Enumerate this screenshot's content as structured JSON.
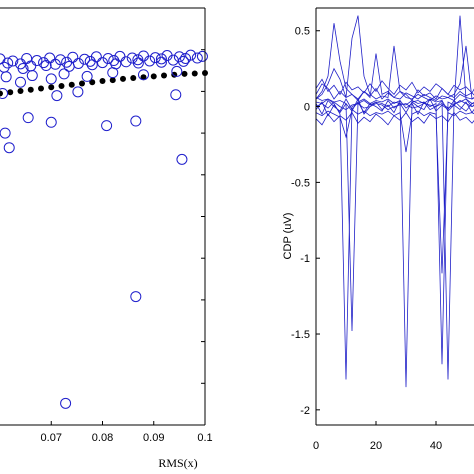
{
  "chart_data": [
    {
      "type": "scatter",
      "xlabel": "RMS(x)",
      "xlim": [
        0.06,
        0.1
      ],
      "xticks": [
        0.07,
        0.08,
        0.09,
        0.1
      ],
      "xtick_labels": [
        "0.07",
        "0.08",
        "0.09",
        "0.1"
      ],
      "ylim": [
        0,
        1
      ],
      "grid": false,
      "series": [
        {
          "marker": "open-circle",
          "color": "#1f1fcc",
          "points": [
            [
              0.06,
              0.878
            ],
            [
              0.0615,
              0.868
            ],
            [
              0.0625,
              0.873
            ],
            [
              0.064,
              0.866
            ],
            [
              0.0652,
              0.879
            ],
            [
              0.066,
              0.861
            ],
            [
              0.0672,
              0.874
            ],
            [
              0.0685,
              0.869
            ],
            [
              0.0697,
              0.88
            ],
            [
              0.0708,
              0.865
            ],
            [
              0.0718,
              0.876
            ],
            [
              0.073,
              0.87
            ],
            [
              0.0742,
              0.882
            ],
            [
              0.0753,
              0.867
            ],
            [
              0.0765,
              0.877
            ],
            [
              0.0776,
              0.872
            ],
            [
              0.0788,
              0.883
            ],
            [
              0.08,
              0.869
            ],
            [
              0.0811,
              0.879
            ],
            [
              0.0822,
              0.874
            ],
            [
              0.0834,
              0.884
            ],
            [
              0.0846,
              0.871
            ],
            [
              0.0858,
              0.88
            ],
            [
              0.0869,
              0.876
            ],
            [
              0.088,
              0.885
            ],
            [
              0.0892,
              0.873
            ],
            [
              0.0903,
              0.881
            ],
            [
              0.0915,
              0.878
            ],
            [
              0.0926,
              0.886
            ],
            [
              0.0938,
              0.875
            ],
            [
              0.095,
              0.883
            ],
            [
              0.0962,
              0.879
            ],
            [
              0.0972,
              0.887
            ],
            [
              0.0985,
              0.88
            ],
            [
              0.0995,
              0.884
            ],
            [
              0.0608,
              0.858
            ],
            [
              0.0645,
              0.855
            ],
            [
              0.069,
              0.862
            ],
            [
              0.0735,
              0.86
            ],
            [
              0.078,
              0.864
            ],
            [
              0.0826,
              0.866
            ],
            [
              0.087,
              0.868
            ],
            [
              0.0915,
              0.87
            ],
            [
              0.0958,
              0.872
            ],
            [
              0.0605,
              0.795
            ],
            [
              0.0612,
              0.835
            ],
            [
              0.064,
              0.822
            ],
            [
              0.0663,
              0.838
            ],
            [
              0.07,
              0.83
            ],
            [
              0.0725,
              0.842
            ],
            [
              0.077,
              0.836
            ],
            [
              0.082,
              0.845
            ],
            [
              0.088,
              0.84
            ],
            [
              0.0945,
              0.848
            ],
            [
              0.0711,
              0.79
            ],
            [
              0.0752,
              0.799
            ],
            [
              0.0943,
              0.792
            ],
            [
              0.0655,
              0.737
            ],
            [
              0.07,
              0.726
            ],
            [
              0.0808,
              0.718
            ],
            [
              0.0865,
              0.729
            ],
            [
              0.061,
              0.7
            ],
            [
              0.0618,
              0.665
            ],
            [
              0.0955,
              0.637
            ],
            [
              0.0865,
              0.308
            ],
            [
              0.0728,
              0.052
            ]
          ]
        },
        {
          "marker": "filled-dot",
          "color": "#000000",
          "points": [
            [
              0.06,
              0.795
            ],
            [
              0.062,
              0.798
            ],
            [
              0.064,
              0.801
            ],
            [
              0.066,
              0.804
            ],
            [
              0.068,
              0.807
            ],
            [
              0.07,
              0.81
            ],
            [
              0.072,
              0.813
            ],
            [
              0.074,
              0.816
            ],
            [
              0.076,
              0.819
            ],
            [
              0.078,
              0.822
            ],
            [
              0.08,
              0.825
            ],
            [
              0.082,
              0.827
            ],
            [
              0.084,
              0.83
            ],
            [
              0.086,
              0.832
            ],
            [
              0.088,
              0.834
            ],
            [
              0.09,
              0.836
            ],
            [
              0.092,
              0.838
            ],
            [
              0.094,
              0.84
            ],
            [
              0.096,
              0.842
            ],
            [
              0.098,
              0.843
            ],
            [
              0.1,
              0.844
            ]
          ]
        }
      ]
    },
    {
      "type": "line",
      "ylabel": "CDP (uV)",
      "xlim": [
        0,
        60
      ],
      "xticks": [
        0,
        20,
        40
      ],
      "xtick_labels": [
        "0",
        "20",
        "40"
      ],
      "ylim": [
        -2.1,
        0.65
      ],
      "yticks": [
        0.5,
        0,
        -0.5,
        -1,
        -1.5,
        -2
      ],
      "ytick_labels": [
        "0.5",
        "0",
        "-0.5",
        "-1",
        "-1.5",
        "-2"
      ],
      "grid": false,
      "color": "#2020c8",
      "x": [
        0,
        2,
        4,
        6,
        8,
        10,
        12,
        14,
        16,
        18,
        20,
        22,
        24,
        26,
        28,
        30,
        32,
        34,
        36,
        38,
        40,
        42,
        44,
        46,
        48,
        50,
        52,
        54,
        56,
        58,
        60
      ],
      "series": [
        {
          "values": [
            0.08,
            0.15,
            0.12,
            0.05,
            0.1,
            0.06,
            0.08,
            0.04,
            0.1,
            0.07,
            0.12,
            0.05,
            0.09,
            0.06,
            0.1,
            0.08,
            0.04,
            0.11,
            0.07,
            0.09,
            0.05,
            0.12,
            0.08,
            0.06,
            0.1,
            0.07,
            0.09,
            0.05,
            0.11,
            0.08,
            0.06
          ]
        },
        {
          "values": [
            0.02,
            -0.05,
            0.04,
            0.0,
            -0.03,
            0.05,
            -0.02,
            0.03,
            -0.04,
            0.02,
            0.0,
            -0.03,
            0.04,
            -0.01,
            0.02,
            -0.04,
            0.03,
            0.0,
            -0.02,
            0.05,
            -0.03,
            0.01,
            -0.02,
            0.04,
            0.0,
            -0.03,
            0.02,
            0.01,
            -0.04,
            0.03,
            0.0
          ]
        },
        {
          "values": [
            -0.08,
            -0.12,
            -0.05,
            -0.1,
            -0.06,
            -0.09,
            -0.04,
            -0.11,
            -0.07,
            -0.1,
            -0.05,
            -0.08,
            -0.12,
            -0.06,
            -0.09,
            -0.04,
            -0.1,
            -0.07,
            -0.11,
            -0.05,
            -0.08,
            -0.06,
            -0.1,
            -0.04,
            -0.09,
            -0.07,
            -0.11,
            -0.06,
            -0.08,
            -0.05,
            -0.09
          ]
        },
        {
          "values": [
            0.12,
            0.18,
            0.1,
            0.14,
            0.08,
            0.16,
            0.11,
            0.13,
            0.09,
            0.15,
            0.1,
            0.17,
            0.12,
            0.08,
            0.14,
            0.11,
            0.16,
            0.09,
            0.13,
            0.1,
            0.15,
            0.12,
            0.08,
            0.14,
            0.11,
            0.13,
            0.09,
            0.16,
            0.1,
            0.12,
            0.14
          ]
        },
        {
          "values": [
            -0.02,
            0.03,
            -0.06,
            0.01,
            -0.04,
            0.02,
            -0.03,
            0.05,
            -0.05,
            0.0,
            0.03,
            -0.02,
            0.01,
            -0.04,
            0.04,
            -0.01,
            0.02,
            -0.05,
            0.03,
            -0.02,
            0.0,
            0.04,
            -0.03,
            0.01,
            -0.02,
            0.03,
            -0.04,
            0.02,
            0.0,
            -0.03,
            0.01
          ]
        },
        {
          "values": [
            0.05,
            0.1,
            0.2,
            0.55,
            0.3,
            0.12,
            0.08,
            0.05,
            0.1,
            0.06,
            0.35,
            0.08,
            0.1,
            0.06,
            0.05,
            0.09,
            0.07,
            0.05,
            0.08,
            0.06,
            0.04,
            0.07,
            0.06,
            0.08,
            0.15,
            0.4,
            0.05,
            0.08,
            0.06,
            0.04,
            0.06
          ]
        },
        {
          "values": [
            0.05,
            0.08,
            0.15,
            0.25,
            0.18,
            0.06,
            0.45,
            0.6,
            0.2,
            0.08,
            0.05,
            0.07,
            0.06,
            0.4,
            0.1,
            0.06,
            0.05,
            0.08,
            0.06,
            0.04,
            0.07,
            0.05,
            0.06,
            0.04,
            0.08,
            0.06,
            0.05,
            0.07,
            0.04,
            0.06,
            0.05
          ]
        },
        {
          "values": [
            0.03,
            0.02,
            0.05,
            0.02,
            -0.05,
            -1.8,
            0.0,
            0.02,
            0.04,
            0.01,
            0.03,
            0.02,
            0.0,
            0.03,
            0.02,
            0.01,
            0.04,
            0.02,
            0.03,
            0.0,
            0.02,
            -1.7,
            0.03,
            0.01,
            0.04,
            0.02,
            0.0,
            0.03,
            0.02,
            0.01,
            0.02
          ]
        },
        {
          "values": [
            0.06,
            0.04,
            0.05,
            0.03,
            0.04,
            0.02,
            -1.48,
            0.03,
            0.05,
            0.02,
            0.04,
            0.03,
            0.05,
            0.02,
            0.04,
            -1.85,
            0.03,
            0.04,
            0.02,
            0.05,
            0.03,
            0.04,
            -1.8,
            0.02,
            0.03,
            0.05,
            0.02,
            0.04,
            0.03,
            0.02,
            0.04
          ]
        },
        {
          "values": [
            -0.04,
            -0.06,
            -0.03,
            -0.05,
            -0.07,
            -0.2,
            -0.02,
            -0.05,
            -0.03,
            -0.06,
            -0.04,
            -0.05,
            -0.03,
            -0.06,
            -0.04,
            -0.3,
            -0.05,
            -0.03,
            -0.06,
            -0.04,
            -0.05,
            -1.1,
            -0.04,
            -0.06,
            -0.03,
            -0.05,
            -0.04,
            -0.06,
            -0.03,
            -0.05,
            -0.04
          ]
        },
        {
          "values": [
            0.0,
            0.02,
            -0.01,
            0.03,
            0.0,
            -0.02,
            0.01,
            0.02,
            -0.01,
            0.0,
            0.02,
            0.01,
            -0.02,
            0.0,
            0.01,
            0.02,
            -0.01,
            0.0,
            0.02,
            0.01,
            0.0,
            0.02,
            -0.01,
            0.01,
            0.6,
            0.05,
            0.0,
            0.02,
            -0.01,
            0.01,
            0.0
          ]
        }
      ]
    }
  ]
}
